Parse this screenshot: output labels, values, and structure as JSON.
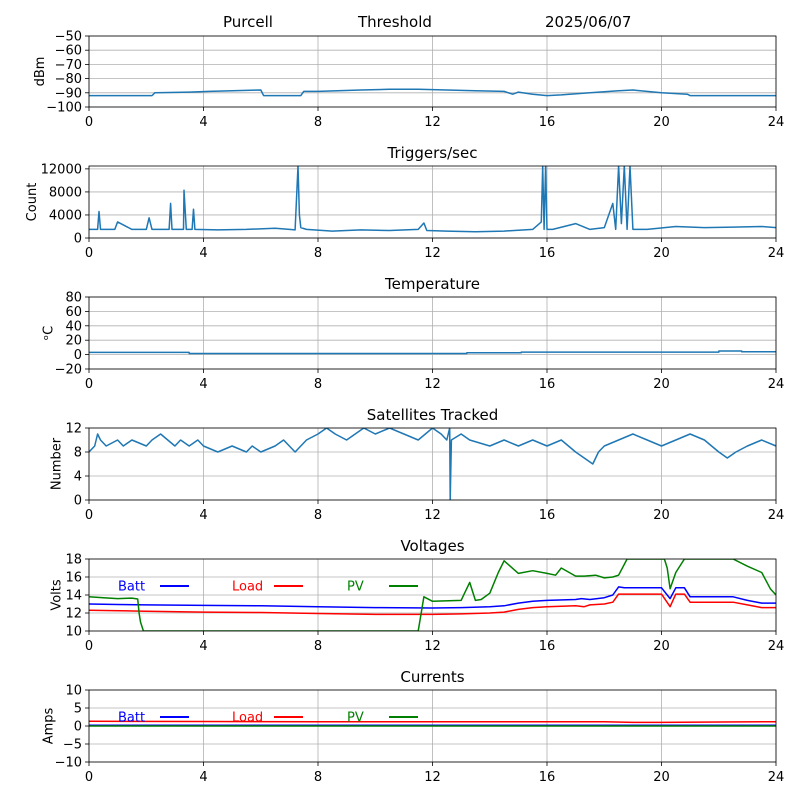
{
  "header": {
    "station": "Purcell",
    "mode": "Threshold",
    "date": "2025/06/07"
  },
  "chart_data": [
    {
      "type": "line",
      "title": "",
      "xlabel": "",
      "ylabel": "dBm",
      "xlim": [
        0,
        24
      ],
      "ylim": [
        -100,
        -50
      ],
      "xticks": [
        0,
        4,
        8,
        12,
        16,
        20,
        24
      ],
      "yticks": [
        -100,
        -90,
        -80,
        -70,
        -60,
        -50
      ],
      "ytick_labels": [
        "−100",
        "−90",
        "−80",
        "−70",
        "−60",
        "−50"
      ],
      "grid": true,
      "series": [
        {
          "color": "#1f77b4",
          "x": [
            0,
            2.2,
            2.3,
            3.5,
            4.2,
            5.0,
            6.0,
            6.1,
            7.4,
            7.5,
            8.0,
            9.5,
            10.5,
            11.5,
            12.5,
            13.5,
            14.5,
            14.8,
            15.0,
            15.5,
            16.0,
            16.5,
            17.5,
            18.5,
            19.0,
            20.0,
            20.9,
            21.0,
            22.0,
            23.0,
            24.0
          ],
          "y": [
            -92,
            -92,
            -90,
            -89.5,
            -89,
            -88.5,
            -88,
            -92,
            -92,
            -89,
            -89,
            -88,
            -87.5,
            -87.5,
            -88,
            -88.5,
            -89,
            -91,
            -89.5,
            -91,
            -92,
            -91.5,
            -90,
            -88.5,
            -88,
            -90,
            -91,
            -92,
            -92,
            -92,
            -92
          ]
        }
      ]
    },
    {
      "type": "line",
      "title": "Triggers/sec",
      "xlabel": "",
      "ylabel": "Count",
      "xlim": [
        0,
        24
      ],
      "ylim": [
        0,
        12500
      ],
      "xticks": [
        0,
        4,
        8,
        12,
        16,
        20,
        24
      ],
      "yticks": [
        0,
        4000,
        8000,
        12000
      ],
      "ytick_labels": [
        "0",
        "4000",
        "8000",
        "12000"
      ],
      "grid": true,
      "series": [
        {
          "color": "#1f77b4",
          "x": [
            0,
            0.3,
            0.35,
            0.4,
            0.9,
            1.0,
            1.5,
            2.0,
            2.1,
            2.2,
            2.8,
            2.85,
            2.9,
            3.3,
            3.32,
            3.4,
            3.6,
            3.65,
            3.7,
            4.5,
            5.5,
            6.5,
            7.0,
            7.2,
            7.3,
            7.35,
            7.4,
            7.6,
            8.5,
            9.5,
            10.5,
            11.5,
            11.7,
            11.8,
            12.5,
            13.5,
            14.5,
            15.5,
            15.8,
            15.85,
            15.9,
            15.95,
            16.0,
            16.2,
            17.0,
            17.5,
            18.0,
            18.3,
            18.4,
            18.5,
            18.6,
            18.7,
            18.8,
            18.9,
            19.0,
            19.5,
            20.5,
            21.5,
            22.5,
            23.5,
            24.0
          ],
          "y": [
            1500,
            1500,
            4600,
            1500,
            1500,
            2800,
            1500,
            1500,
            3500,
            1500,
            1500,
            6000,
            1500,
            1500,
            8300,
            1500,
            1500,
            5000,
            1500,
            1400,
            1500,
            1700,
            1500,
            1400,
            12500,
            4000,
            1800,
            1500,
            1200,
            1400,
            1300,
            1500,
            2600,
            1300,
            1200,
            1100,
            1200,
            1500,
            2800,
            12500,
            1500,
            12500,
            1500,
            1500,
            2500,
            1500,
            1800,
            6000,
            1500,
            12500,
            2500,
            12500,
            1500,
            12500,
            1500,
            1500,
            2000,
            1800,
            1900,
            2000,
            1800
          ]
        }
      ]
    },
    {
      "type": "line",
      "title": "Temperature",
      "xlabel": "",
      "ylabel": "ᵒC",
      "xlim": [
        0,
        24
      ],
      "ylim": [
        -20,
        80
      ],
      "xticks": [
        0,
        4,
        8,
        12,
        16,
        20,
        24
      ],
      "yticks": [
        -20,
        0,
        20,
        40,
        60,
        80
      ],
      "ytick_labels": [
        "−20",
        "0",
        "20",
        "40",
        "60",
        "80"
      ],
      "grid": true,
      "series": [
        {
          "color": "#1f77b4",
          "x": [
            0,
            3.5,
            3.5,
            13.2,
            13.2,
            15.1,
            15.1,
            22,
            22,
            22.8,
            22.8,
            24
          ],
          "y": [
            3,
            3,
            1.5,
            1.5,
            2.5,
            2.5,
            3.5,
            3.5,
            5,
            5,
            4,
            4
          ]
        }
      ]
    },
    {
      "type": "line",
      "title": "Satellites Tracked",
      "xlabel": "",
      "ylabel": "Number",
      "xlim": [
        0,
        24
      ],
      "ylim": [
        0,
        12
      ],
      "xticks": [
        0,
        4,
        8,
        12,
        16,
        20,
        24
      ],
      "yticks": [
        0,
        4,
        8,
        12
      ],
      "ytick_labels": [
        "0",
        "4",
        "8",
        "12"
      ],
      "grid": true,
      "series": [
        {
          "color": "#1f77b4",
          "x": [
            0,
            0.2,
            0.3,
            0.4,
            0.6,
            1.0,
            1.2,
            1.5,
            2.0,
            2.2,
            2.5,
            3.0,
            3.2,
            3.5,
            3.8,
            4.0,
            4.5,
            5.0,
            5.5,
            5.7,
            6.0,
            6.5,
            6.8,
            7.2,
            7.4,
            7.6,
            8.0,
            8.3,
            8.6,
            9.0,
            9.3,
            9.6,
            10.0,
            10.5,
            11.0,
            11.5,
            12.0,
            12.3,
            12.5,
            12.6,
            12.62,
            12.66,
            13.0,
            13.3,
            14.0,
            14.5,
            15.0,
            15.5,
            16.0,
            16.5,
            17.0,
            17.3,
            17.6,
            17.8,
            18.0,
            18.5,
            19.0,
            19.5,
            20.0,
            20.5,
            21.0,
            21.5,
            22.0,
            22.3,
            22.6,
            23.0,
            23.5,
            24.0
          ],
          "y": [
            8,
            9,
            11,
            10,
            9,
            10,
            9,
            10,
            9,
            10,
            11,
            9,
            10,
            9,
            10,
            9,
            8,
            9,
            8,
            9,
            8,
            9,
            10,
            8,
            9,
            10,
            11,
            12,
            11,
            10,
            11,
            12,
            11,
            12,
            11,
            10,
            12,
            11,
            10,
            12,
            0,
            10,
            11,
            10,
            9,
            10,
            9,
            10,
            9,
            10,
            8,
            7,
            6,
            8,
            9,
            10,
            11,
            10,
            9,
            10,
            11,
            10,
            8,
            7,
            8,
            9,
            10,
            9
          ]
        }
      ]
    },
    {
      "type": "line",
      "title": "Voltages",
      "xlabel": "",
      "ylabel": "Volts",
      "xlim": [
        0,
        24
      ],
      "ylim": [
        10,
        18
      ],
      "xticks": [
        0,
        4,
        8,
        12,
        16,
        20,
        24
      ],
      "yticks": [
        10,
        12,
        14,
        16,
        18
      ],
      "ytick_labels": [
        "10",
        "12",
        "14",
        "16",
        "18"
      ],
      "grid": true,
      "legend": [
        "Batt",
        "Load",
        "PV"
      ],
      "series": [
        {
          "name": "Batt",
          "color": "#0000ff",
          "x": [
            0,
            1,
            2,
            4,
            6,
            8,
            10,
            12,
            13,
            14,
            14.5,
            15,
            15.5,
            16,
            17,
            17.2,
            17.5,
            18,
            18.3,
            18.5,
            18.7,
            19,
            20,
            20.3,
            20.5,
            20.8,
            21,
            22,
            22.5,
            23,
            23.5,
            24
          ],
          "y": [
            13,
            12.95,
            12.9,
            12.85,
            12.8,
            12.7,
            12.6,
            12.55,
            12.6,
            12.7,
            12.8,
            13.1,
            13.3,
            13.4,
            13.5,
            13.6,
            13.5,
            13.7,
            14.0,
            14.9,
            14.8,
            14.8,
            14.8,
            13.6,
            14.8,
            14.8,
            13.8,
            13.8,
            13.8,
            13.4,
            13.1,
            13.1
          ]
        },
        {
          "name": "Load",
          "color": "#ff0000",
          "x": [
            0,
            2,
            4,
            6,
            8,
            10,
            12,
            13,
            14,
            14.5,
            15,
            15.5,
            16,
            17,
            17.3,
            17.5,
            18,
            18.3,
            18.5,
            18.7,
            19,
            20,
            20.3,
            20.5,
            20.8,
            21,
            22,
            22.5,
            23,
            23.5,
            24
          ],
          "y": [
            12.3,
            12.2,
            12.1,
            12.05,
            11.95,
            11.85,
            11.85,
            11.9,
            12.0,
            12.1,
            12.4,
            12.6,
            12.7,
            12.8,
            12.7,
            12.9,
            13.0,
            13.2,
            14.1,
            14.1,
            14.1,
            14.1,
            12.7,
            14.1,
            14.1,
            13.2,
            13.2,
            13.2,
            12.9,
            12.6,
            12.6
          ]
        },
        {
          "name": "PV",
          "color": "#008000",
          "x": [
            0,
            0.5,
            1,
            1.5,
            1.7,
            1.75,
            1.8,
            1.9,
            11.5,
            11.7,
            12,
            13,
            13.3,
            13.5,
            13.7,
            14,
            14.3,
            14.5,
            15,
            15.5,
            16,
            16.3,
            16.5,
            17,
            17.3,
            17.7,
            18,
            18.3,
            18.5,
            18.8,
            20.1,
            20.2,
            20.3,
            20.5,
            20.8,
            21,
            22.5,
            23,
            23.5,
            23.8,
            24
          ],
          "y": [
            13.8,
            13.7,
            13.6,
            13.65,
            13.55,
            12,
            11,
            10,
            10,
            13.8,
            13.3,
            13.4,
            15.4,
            13.4,
            13.5,
            14.2,
            16.5,
            17.8,
            16.4,
            16.7,
            16.4,
            16.2,
            17.0,
            16.1,
            16.1,
            16.2,
            15.9,
            16.0,
            16.2,
            18,
            18,
            17.0,
            14.7,
            16.5,
            18,
            18,
            18,
            17.2,
            16.5,
            14.7,
            14.0
          ]
        }
      ]
    },
    {
      "type": "line",
      "title": "Currents",
      "xlabel": "",
      "ylabel": "Amps",
      "xlim": [
        0,
        24
      ],
      "ylim": [
        -10,
        10
      ],
      "xticks": [
        0,
        4,
        8,
        12,
        16,
        20,
        24
      ],
      "yticks": [
        -10,
        -5,
        0,
        5,
        10
      ],
      "ytick_labels": [
        "−10",
        "−5",
        "0",
        "5",
        "10"
      ],
      "grid": true,
      "legend": [
        "Batt",
        "Load",
        "PV"
      ],
      "series": [
        {
          "name": "Batt",
          "color": "#0000ff",
          "x": [
            0,
            24
          ],
          "y": [
            0.2,
            0.2
          ]
        },
        {
          "name": "Load",
          "color": "#ff0000",
          "x": [
            0,
            4,
            8,
            12,
            16,
            18,
            19,
            20,
            22,
            24
          ],
          "y": [
            1.3,
            1.25,
            1.2,
            1.2,
            1.2,
            1.2,
            1.0,
            1.0,
            1.1,
            1.2
          ]
        },
        {
          "name": "PV",
          "color": "#008000",
          "x": [
            0,
            24
          ],
          "y": [
            0,
            0
          ]
        }
      ]
    }
  ]
}
